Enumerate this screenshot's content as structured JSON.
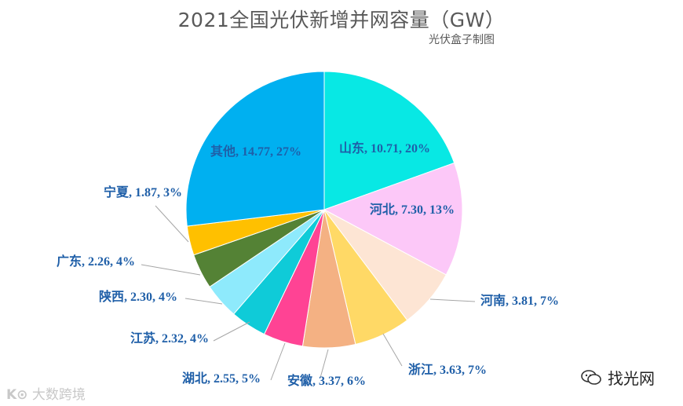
{
  "chart_data": {
    "type": "pie",
    "title": "2021全国光伏新增并网容量（GW）",
    "subtitle": "光伏盒子制图",
    "slices": [
      {
        "name": "山东",
        "value": 10.71,
        "percent": "20%",
        "label": "山东, 10.71, 20%",
        "color": "#08e8e4"
      },
      {
        "name": "河北",
        "value": 7.3,
        "percent": "13%",
        "label": "河北, 7.30, 13%",
        "color": "#fcc8f8"
      },
      {
        "name": "河南",
        "value": 3.81,
        "percent": "7%",
        "label": "河南, 3.81, 7%",
        "color": "#fde5d4"
      },
      {
        "name": "浙江",
        "value": 3.63,
        "percent": "7%",
        "label": "浙江, 3.63, 7%",
        "color": "#ffd966"
      },
      {
        "name": "安徽",
        "value": 3.37,
        "percent": "6%",
        "label": "安徽, 3.37, 6%",
        "color": "#f4b183"
      },
      {
        "name": "湖北",
        "value": 2.55,
        "percent": "5%",
        "label": "湖北, 2.55, 5%",
        "color": "#ff4394"
      },
      {
        "name": "江苏",
        "value": 2.32,
        "percent": "4%",
        "label": "江苏, 2.32, 4%",
        "color": "#0fcbd8"
      },
      {
        "name": "陕西",
        "value": 2.3,
        "percent": "4%",
        "label": "陕西, 2.30, 4%",
        "color": "#8eeafc"
      },
      {
        "name": "广东",
        "value": 2.26,
        "percent": "4%",
        "label": "广东, 2.26, 4%",
        "color": "#548235"
      },
      {
        "name": "宁夏",
        "value": 1.87,
        "percent": "3%",
        "label": "宁夏, 1.87, 3%",
        "color": "#ffc000"
      },
      {
        "name": "其他",
        "value": 14.77,
        "percent": "27%",
        "label": "其他, 14.77, 27%",
        "color": "#00b0f0"
      }
    ],
    "label_color": "#1f5fa8",
    "legend": "none"
  },
  "watermarks": {
    "left": "大数跨境",
    "right": "找光网",
    "right_icon": "wechat-icon"
  }
}
